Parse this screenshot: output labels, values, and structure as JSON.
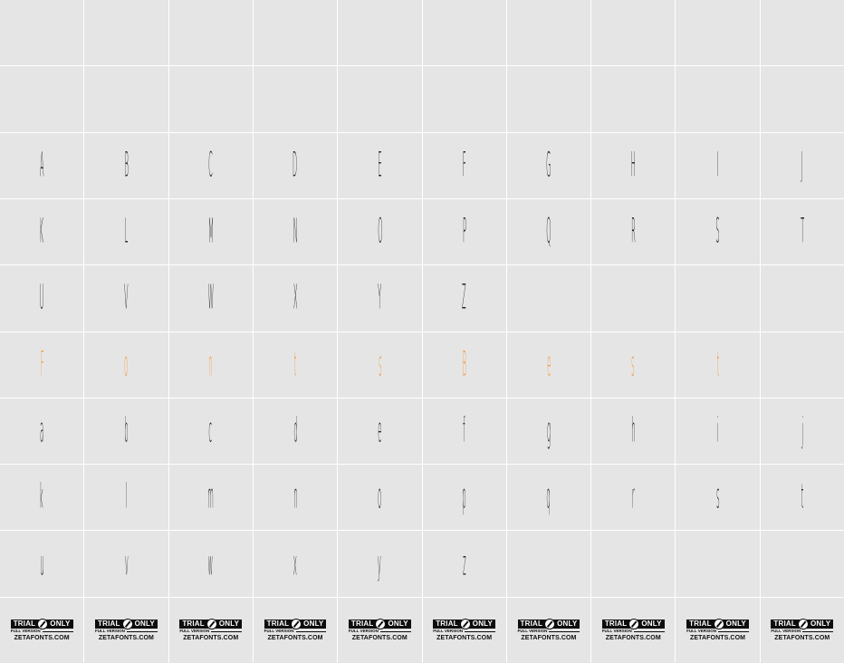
{
  "rows": [
    [
      null,
      null,
      null,
      null,
      null,
      null,
      null,
      null,
      null,
      null
    ],
    [
      null,
      null,
      null,
      null,
      null,
      null,
      null,
      null,
      null,
      null
    ],
    [
      "A",
      "B",
      "C",
      "D",
      "E",
      "F",
      "G",
      "H",
      "I",
      "J"
    ],
    [
      "K",
      "L",
      "M",
      "N",
      "O",
      "P",
      "Q",
      "R",
      "S",
      "T"
    ],
    [
      "U",
      "V",
      "W",
      "X",
      "Y",
      "Z",
      null,
      null,
      null,
      null
    ],
    [
      "F",
      "o",
      "n",
      "t",
      "s",
      "B",
      "e",
      "s",
      "t",
      null
    ],
    [
      "a",
      "b",
      "c",
      "d",
      "e",
      "f",
      "g",
      "h",
      "i",
      "j"
    ],
    [
      "k",
      "l",
      "m",
      "n",
      "o",
      "p",
      "q",
      "r",
      "s",
      "t"
    ],
    [
      "u",
      "v",
      "w",
      "x",
      "y",
      "z",
      null,
      null,
      null,
      null
    ]
  ],
  "accent_row_index": 5,
  "colors": {
    "cell_bg": "#e5e5e5",
    "grid_lines": "#ffffff",
    "glyph": "#222222",
    "accent": "#f59a3c"
  },
  "badge": {
    "top_left": "TRIAL",
    "top_right": "ONLY",
    "middle": "FULL VERSION",
    "bottom": "ZETAFONTS.COM",
    "separator_icon": "prohibited-icon",
    "count": 10
  }
}
